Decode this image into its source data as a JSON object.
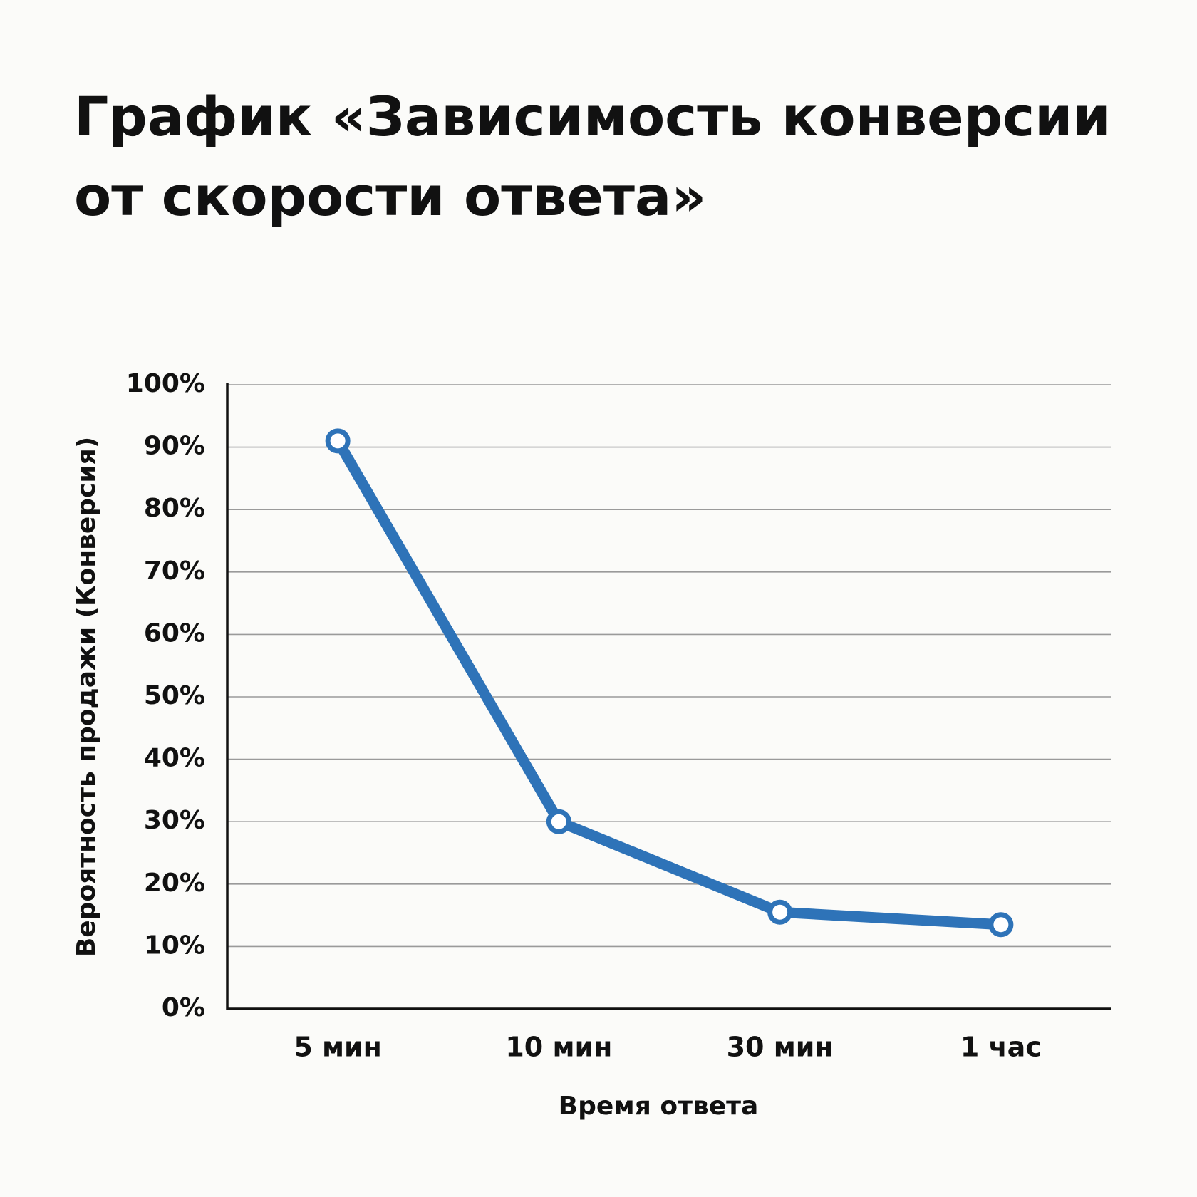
{
  "chart_data": {
    "type": "line",
    "title": "График «Зависимость конверсии от скорости ответа»",
    "x_label": "Время ответа",
    "y_label": "Вероятность продажи (Конверсия)",
    "categories": [
      "5 мин",
      "10 мин",
      "30 мин",
      "1 час"
    ],
    "series": [
      {
        "name": "Конверсия",
        "color": "#2e73b8",
        "values": [
          91,
          30,
          15.5,
          13.5
        ]
      }
    ],
    "ylim": [
      0,
      100
    ],
    "yticks": [
      {
        "value": 0,
        "label": "0%"
      },
      {
        "value": 10,
        "label": "10%"
      },
      {
        "value": 20,
        "label": "20%"
      },
      {
        "value": 30,
        "label": "30%"
      },
      {
        "value": 40,
        "label": "40%"
      },
      {
        "value": 50,
        "label": "50%"
      },
      {
        "value": 60,
        "label": "60%"
      },
      {
        "value": 70,
        "label": "70%"
      },
      {
        "value": 80,
        "label": "80%"
      },
      {
        "value": 90,
        "label": "90%"
      },
      {
        "value": 100,
        "label": "100%"
      }
    ],
    "grid": true
  }
}
